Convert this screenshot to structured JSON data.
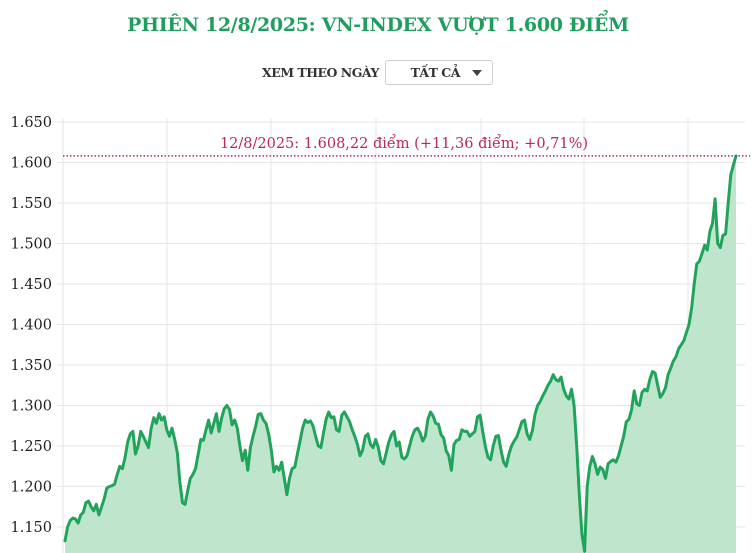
{
  "title": "PHIÊN 12/8/2025: VN-INDEX VƯỢT 1.600 ĐIỂM",
  "filter": {
    "label": "XEM THEO NGÀY",
    "selected": "TẤT CẢ"
  },
  "colors": {
    "title": "#1f9e5f",
    "line": "#22a35c",
    "area": "#bfe6cd",
    "annotation": "#b8285b",
    "grid": "#e6e6e6"
  },
  "chart_data": {
    "type": "area",
    "title": "PHIÊN 12/8/2025: VN-INDEX VƯỢT 1.600 ĐIỂM",
    "xlabel": "",
    "ylabel": "",
    "ylim": [
      1130,
      1650
    ],
    "yticks": [
      1650,
      1600,
      1550,
      1500,
      1450,
      1400,
      1350,
      1300,
      1250,
      1200,
      1150
    ],
    "ytick_labels": [
      "1.650",
      "1.600",
      "1.550",
      "1.500",
      "1.450",
      "1.400",
      "1.350",
      "1.300",
      "1.250",
      "1.200",
      "1.150"
    ],
    "grid": true,
    "legend": null,
    "series": [
      {
        "name": "VN-Index",
        "values": [
          1133,
          1150,
          1158,
          1161,
          1160,
          1155,
          1165,
          1168,
          1180,
          1182,
          1175,
          1170,
          1178,
          1165,
          1175,
          1185,
          1198,
          1200,
          1201,
          1203,
          1215,
          1225,
          1222,
          1236,
          1255,
          1265,
          1268,
          1240,
          1250,
          1268,
          1262,
          1255,
          1248,
          1272,
          1285,
          1278,
          1290,
          1282,
          1286,
          1270,
          1262,
          1272,
          1258,
          1242,
          1205,
          1180,
          1178,
          1195,
          1210,
          1215,
          1222,
          1240,
          1258,
          1257,
          1270,
          1282,
          1266,
          1278,
          1290,
          1268,
          1285,
          1296,
          1300,
          1295,
          1276,
          1282,
          1272,
          1250,
          1232,
          1245,
          1220,
          1248,
          1262,
          1274,
          1289,
          1290,
          1282,
          1278,
          1265,
          1245,
          1218,
          1225,
          1220,
          1230,
          1210,
          1190,
          1210,
          1222,
          1224,
          1240,
          1256,
          1272,
          1282,
          1279,
          1281,
          1275,
          1262,
          1250,
          1248,
          1266,
          1283,
          1292,
          1285,
          1286,
          1270,
          1268,
          1288,
          1292,
          1286,
          1280,
          1270,
          1262,
          1252,
          1238,
          1245,
          1262,
          1265,
          1252,
          1248,
          1258,
          1248,
          1232,
          1228,
          1241,
          1255,
          1264,
          1268,
          1250,
          1255,
          1236,
          1234,
          1238,
          1250,
          1262,
          1270,
          1272,
          1266,
          1256,
          1262,
          1283,
          1292,
          1287,
          1278,
          1277,
          1264,
          1260,
          1244,
          1238,
          1220,
          1252,
          1257,
          1258,
          1270,
          1268,
          1268,
          1262,
          1265,
          1268,
          1286,
          1288,
          1268,
          1249,
          1236,
          1233,
          1250,
          1262,
          1263,
          1245,
          1230,
          1225,
          1240,
          1250,
          1256,
          1261,
          1270,
          1280,
          1282,
          1265,
          1258,
          1269,
          1289,
          1300,
          1305,
          1312,
          1318,
          1325,
          1330,
          1338,
          1332,
          1330,
          1335,
          1320,
          1312,
          1308,
          1320,
          1300,
          1250,
          1190,
          1140,
          1120,
          1200,
          1225,
          1237,
          1228,
          1215,
          1224,
          1221,
          1210,
          1228,
          1231,
          1233,
          1230,
          1238,
          1250,
          1262,
          1280,
          1283,
          1295,
          1318,
          1302,
          1300,
          1316,
          1320,
          1318,
          1332,
          1342,
          1340,
          1325,
          1310,
          1315,
          1322,
          1338,
          1346,
          1355,
          1360,
          1370,
          1375,
          1380,
          1390,
          1400,
          1420,
          1450,
          1475,
          1478,
          1488,
          1498,
          1492,
          1515,
          1525,
          1555,
          1500,
          1495,
          1510,
          1512,
          1550,
          1585,
          1597,
          1608
        ]
      }
    ],
    "annotations": [
      {
        "text": "12/8/2025: 1.608,22 điểm (+11,36 điểm; +0,71%)",
        "type": "horizontal-reference-line",
        "y": 1608.22,
        "style": "dotted"
      }
    ],
    "last_value": 1608.22,
    "last_change": "+11,36 điểm",
    "last_change_pct": "+0,71%"
  }
}
